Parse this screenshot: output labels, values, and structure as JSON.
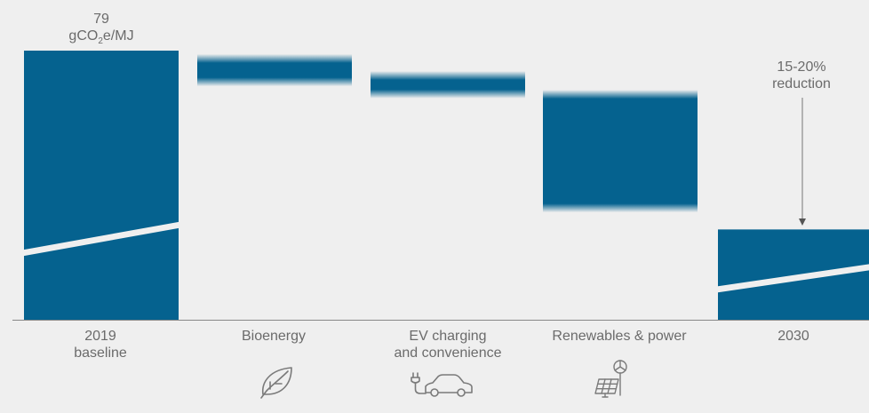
{
  "colors": {
    "bar": "#05628f",
    "background": "#efefef",
    "text": "#6b6b6b",
    "axis": "#888888"
  },
  "chart_data": {
    "type": "bar",
    "subtype": "waterfall",
    "categories": [
      {
        "line1": "2019",
        "line2": "baseline"
      },
      {
        "line1": "Bioenergy",
        "line2": ""
      },
      {
        "line1": "EV charging",
        "line2": "and convenience"
      },
      {
        "line1": "Renewables & power",
        "line2": ""
      },
      {
        "line1": "2030",
        "line2": ""
      }
    ],
    "bars": [
      {
        "kind": "total",
        "from": 0,
        "to": 79,
        "broken_axis": true
      },
      {
        "kind": "range",
        "from": 78.0,
        "to": 68.5,
        "fuzzy": true
      },
      {
        "kind": "range",
        "from": 73.0,
        "to": 65.0,
        "fuzzy": true
      },
      {
        "kind": "range",
        "from": 67.5,
        "to": 31.5,
        "fuzzy": true
      },
      {
        "kind": "total",
        "from": 0,
        "to": 26.5,
        "broken_axis": true
      }
    ],
    "ylim": [
      0,
      79
    ],
    "baseline_label": {
      "value": "79",
      "unit_prefix": "gCO",
      "unit_sub": "2",
      "unit_suffix": "e/MJ"
    },
    "reduction_label": {
      "line1": "15-20%",
      "line2": "reduction"
    }
  },
  "icons": [
    "leaf-icon",
    "ev-car-plug-icon",
    "solar-wind-icon"
  ]
}
